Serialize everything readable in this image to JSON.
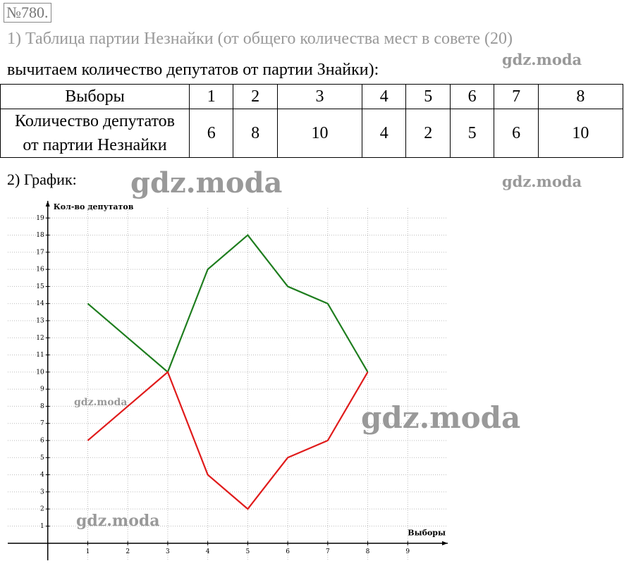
{
  "number": "№780.",
  "line1": "1) Таблица партии Незнайки (от общего количества мест в совете (20)",
  "line2": "вычитаем количество депутатов от партии Знайки):",
  "table": {
    "rows": [
      [
        "Выборы",
        "1",
        "2",
        "3",
        "4",
        "5",
        "6",
        "7",
        "8"
      ],
      [
        "Количество депутатов\nот партии Незнайки",
        "6",
        "8",
        "10",
        "4",
        "2",
        "5",
        "6",
        "10"
      ]
    ]
  },
  "graph_label": "2) График:",
  "watermarks": [
    "gdz.moda",
    "gdz.moda",
    "gdz.moda",
    "gdz.moda",
    "gdz.moda",
    "gdz.moda"
  ],
  "chart_data": {
    "type": "line",
    "y_label": "Кол-во депутатов",
    "x_label": "Выборы",
    "x": [
      1,
      2,
      3,
      4,
      5,
      6,
      7,
      8
    ],
    "series": [
      {
        "color": "#1e7d1e",
        "values": [
          14,
          12,
          10,
          16,
          18,
          15,
          14,
          10
        ]
      },
      {
        "color": "#e01b1b",
        "values": [
          6,
          8,
          10,
          4,
          2,
          5,
          6,
          10
        ]
      }
    ],
    "xlim": [
      -1,
      10
    ],
    "ylim": [
      -1,
      20
    ],
    "xticks": [
      1,
      2,
      3,
      4,
      5,
      6,
      7,
      8,
      9
    ],
    "yticks": [
      1,
      2,
      3,
      4,
      5,
      6,
      7,
      8,
      9,
      10,
      11,
      12,
      13,
      14,
      15,
      16,
      17,
      18,
      19
    ],
    "grid": true
  }
}
